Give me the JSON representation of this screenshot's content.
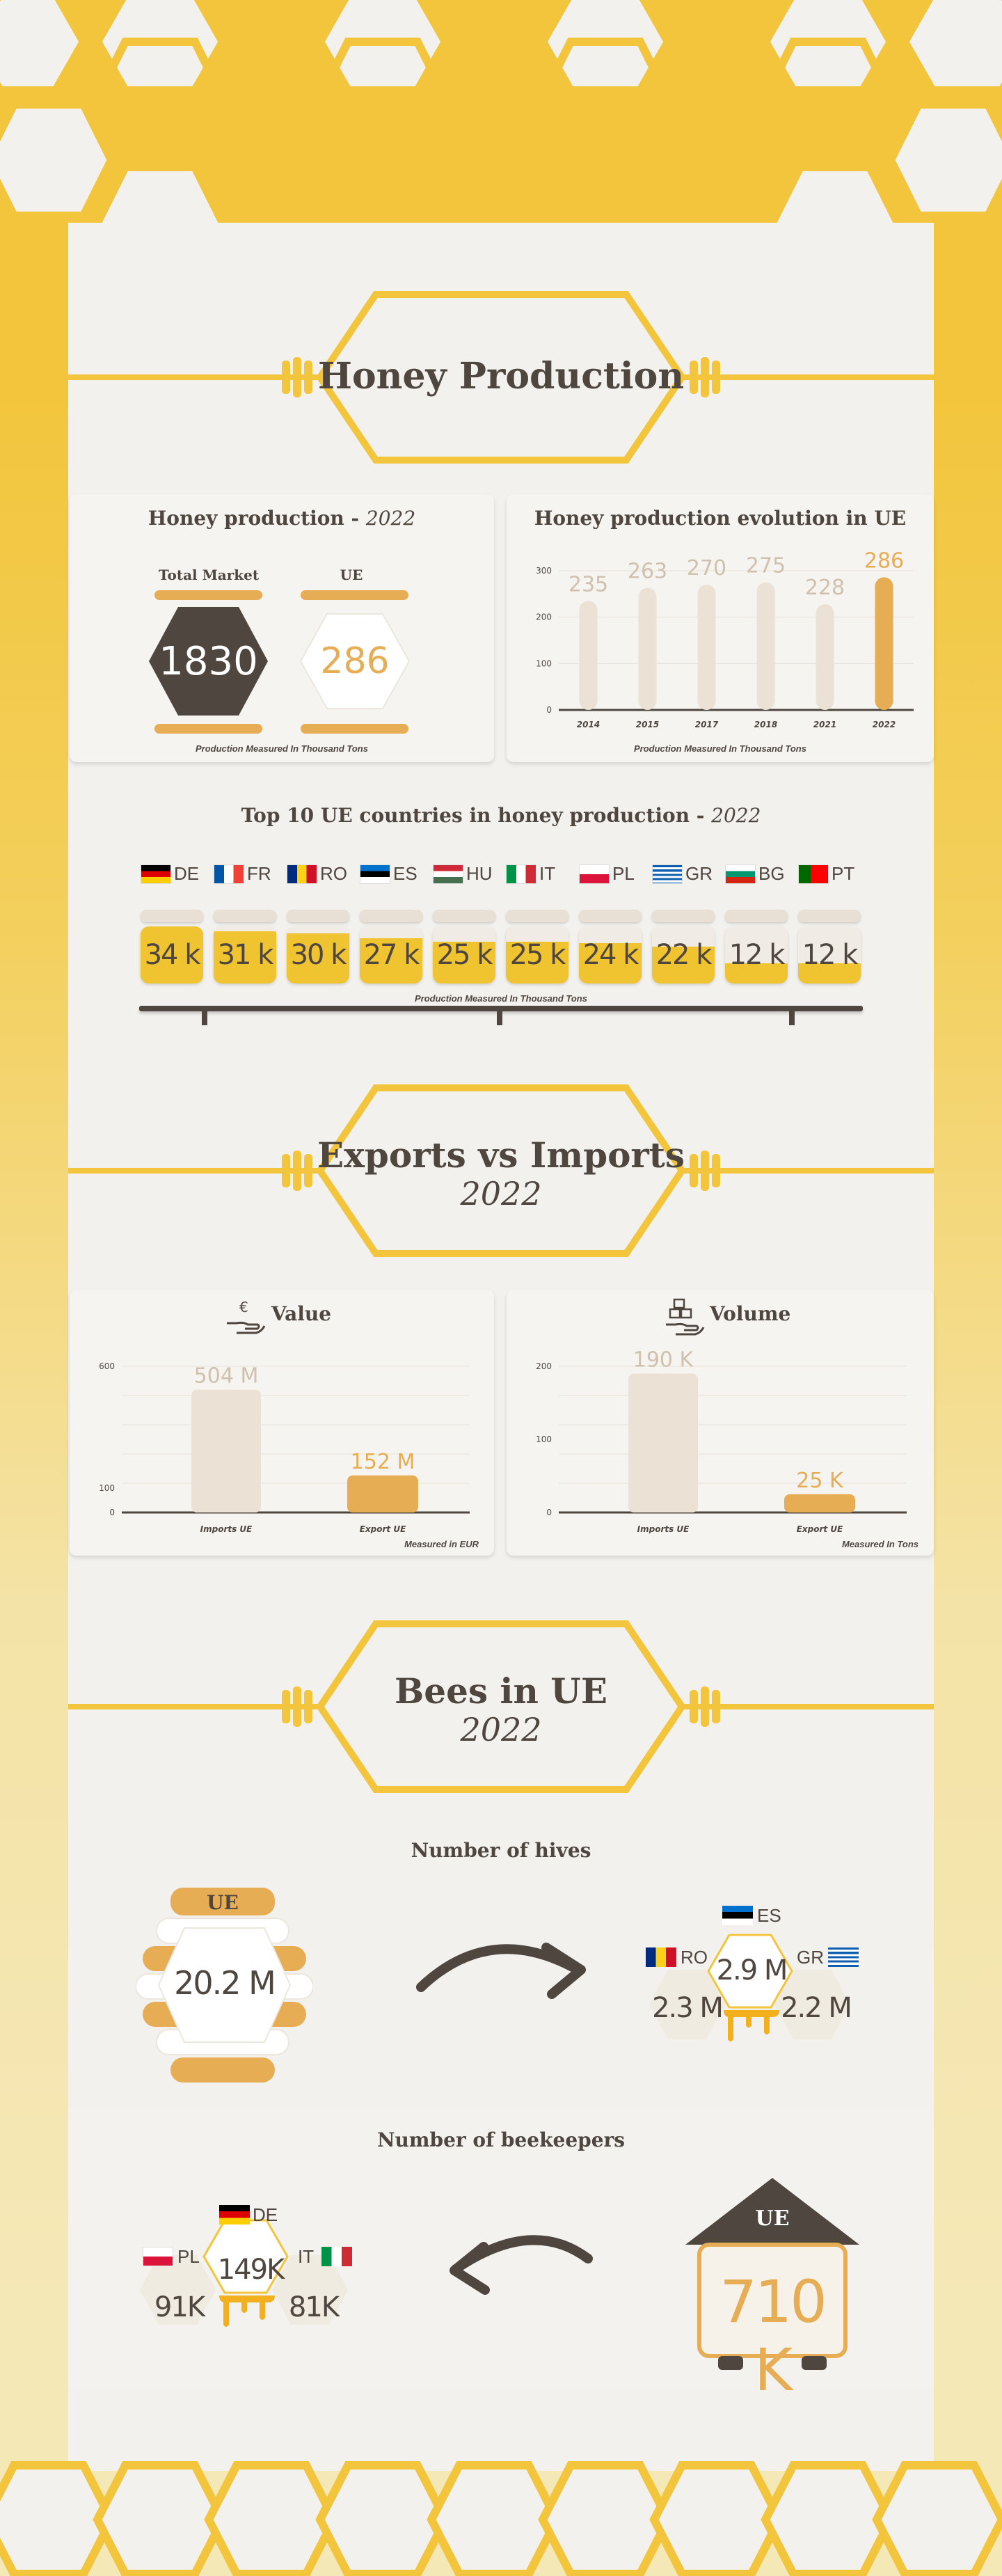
{
  "sections": {
    "honey": {
      "title": "Honey Production"
    },
    "exports": {
      "title": "Exports vs Imports",
      "year": "2022"
    },
    "bees": {
      "title": "Bees in UE",
      "year": "2022"
    }
  },
  "honey_production": {
    "title": "Honey production - ",
    "year": "2022",
    "total_label": "Total Market",
    "total_value": "1830",
    "ue_label": "UE",
    "ue_value": "286",
    "footnote": "Production Measured In Thousand Tons"
  },
  "evolution": {
    "title": "Honey production evolution in UE",
    "footnote": "Production Measured In Thousand Tons",
    "chart_data": {
      "type": "bar",
      "categories": [
        "2014",
        "2015",
        "2017",
        "2018",
        "2021",
        "2022"
      ],
      "values": [
        235,
        263,
        270,
        275,
        228,
        286
      ],
      "ylim": [
        0,
        300
      ],
      "yticks": [
        "0",
        "100",
        "200",
        "300"
      ],
      "grid": true,
      "highlight": "2022",
      "colors": {
        "bar": "#ebe1d4",
        "highlight": "#e6ad55",
        "label": "#cfc1ad",
        "highlight_label": "#e6ad55"
      }
    }
  },
  "top10": {
    "title": "Top 10 UE countries in honey production - ",
    "year": "2022",
    "footnote": "Production Measured In Thousand Tons",
    "countries": [
      {
        "code": "DE",
        "value": "34 k",
        "num": 34
      },
      {
        "code": "FR",
        "value": "31 k",
        "num": 31
      },
      {
        "code": "RO",
        "value": "30 k",
        "num": 30
      },
      {
        "code": "ES",
        "value": "27 k",
        "num": 27
      },
      {
        "code": "HU",
        "value": "25 k",
        "num": 25
      },
      {
        "code": "IT",
        "value": "25 k",
        "num": 25
      },
      {
        "code": "PL",
        "value": "24 k",
        "num": 24
      },
      {
        "code": "GR",
        "value": "22 k",
        "num": 22
      },
      {
        "code": "BG",
        "value": "12 k",
        "num": 12
      },
      {
        "code": "PT",
        "value": "12 k",
        "num": 12
      }
    ]
  },
  "value_chart": {
    "title": "Value",
    "icon": "euro-hand-icon",
    "footnote": "Measured in EUR",
    "chart_data": {
      "type": "bar",
      "categories": [
        "Imports UE",
        "Export UE"
      ],
      "values": [
        504,
        152
      ],
      "labels": [
        "504 M",
        "152 M"
      ],
      "ylim": [
        0,
        600
      ],
      "yticks": [
        "0",
        "100",
        "600"
      ]
    }
  },
  "volume_chart": {
    "title": "Volume",
    "icon": "boxes-hand-icon",
    "footnote": "Measured In Tons",
    "chart_data": {
      "type": "bar",
      "categories": [
        "Imports UE",
        "Export UE"
      ],
      "values": [
        190,
        25
      ],
      "labels": [
        "190 K",
        "25 K"
      ],
      "ylim": [
        0,
        200
      ],
      "yticks": [
        "0",
        "100",
        "200"
      ]
    }
  },
  "hives": {
    "title": "Number of hives",
    "ue_label": "UE",
    "ue_value": "20.2 M",
    "es_label": "ES",
    "es_value": "2.9 M",
    "ro_label": "RO",
    "ro_value": "2.3 M",
    "gr_label": "GR",
    "gr_value": "2.2 M"
  },
  "beekeepers": {
    "title": "Number of beekeepers",
    "de_label": "DE",
    "de_value": "149K",
    "pl_label": "PL",
    "pl_value": "91K",
    "it_label": "IT",
    "it_value": "81K",
    "ue_label": "UE",
    "ue_value": "710 K"
  },
  "colors": {
    "yellow": "#f2c53c",
    "honey": "#e6ad55",
    "dark": "#4e463f",
    "panel": "#f3f1ed"
  }
}
